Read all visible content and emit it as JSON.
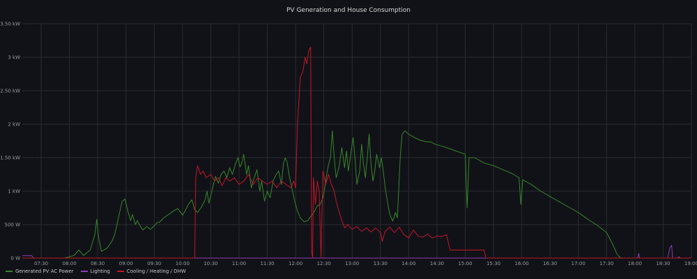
{
  "chart_data": {
    "type": "line",
    "title": "PV Generation and House Consumption",
    "xlabel": "",
    "ylabel": "",
    "x_ticks": [
      "07:30",
      "08:00",
      "08:30",
      "09:00",
      "09:30",
      "10:00",
      "10:30",
      "11:00",
      "11:30",
      "12:00",
      "12:30",
      "13:00",
      "13:30",
      "14:00",
      "14:30",
      "15:00",
      "15:30",
      "16:00",
      "16:30",
      "17:00",
      "17:30",
      "18:00",
      "18:30",
      "19:00"
    ],
    "y_ticks": [
      "0 W",
      "500 W",
      "1 kW",
      "1.50 kW",
      "2 kW",
      "2.50 kW",
      "3 kW",
      "3.50 kW"
    ],
    "ylim": [
      0,
      3500
    ],
    "xlim": [
      "07:10",
      "19:00"
    ],
    "grid": true,
    "legend_position": "bottom-left",
    "series": [
      {
        "name": "Generated PV AC Power",
        "color": "#37872d",
        "points": [
          [
            "07:10",
            0
          ],
          [
            "07:55",
            0
          ],
          [
            "08:05",
            40
          ],
          [
            "08:10",
            120
          ],
          [
            "08:15",
            40
          ],
          [
            "08:22",
            120
          ],
          [
            "08:27",
            350
          ],
          [
            "08:29",
            580
          ],
          [
            "08:31",
            300
          ],
          [
            "08:34",
            100
          ],
          [
            "08:40",
            150
          ],
          [
            "08:45",
            250
          ],
          [
            "08:48",
            350
          ],
          [
            "08:52",
            600
          ],
          [
            "08:56",
            850
          ],
          [
            "08:59",
            880
          ],
          [
            "09:02",
            700
          ],
          [
            "09:05",
            560
          ],
          [
            "09:07",
            650
          ],
          [
            "09:10",
            500
          ],
          [
            "09:12",
            560
          ],
          [
            "09:15",
            480
          ],
          [
            "09:18",
            420
          ],
          [
            "09:22",
            470
          ],
          [
            "09:26",
            430
          ],
          [
            "09:30",
            480
          ],
          [
            "09:33",
            530
          ],
          [
            "09:36",
            540
          ],
          [
            "09:40",
            600
          ],
          [
            "09:45",
            650
          ],
          [
            "09:50",
            700
          ],
          [
            "09:55",
            740
          ],
          [
            "10:00",
            640
          ],
          [
            "10:03",
            710
          ],
          [
            "10:06",
            800
          ],
          [
            "10:10",
            870
          ],
          [
            "10:13",
            720
          ],
          [
            "10:16",
            680
          ],
          [
            "10:20",
            760
          ],
          [
            "10:24",
            870
          ],
          [
            "10:26",
            1000
          ],
          [
            "10:28",
            820
          ],
          [
            "10:30",
            930
          ],
          [
            "10:32",
            1050
          ],
          [
            "10:35",
            1220
          ],
          [
            "10:38",
            1120
          ],
          [
            "10:41",
            1250
          ],
          [
            "10:44",
            1300
          ],
          [
            "10:47",
            1200
          ],
          [
            "10:50",
            1350
          ],
          [
            "10:53",
            1250
          ],
          [
            "10:56",
            1400
          ],
          [
            "10:59",
            1500
          ],
          [
            "11:01",
            1360
          ],
          [
            "11:03",
            1420
          ],
          [
            "11:05",
            1550
          ],
          [
            "11:08",
            1250
          ],
          [
            "11:10",
            1380
          ],
          [
            "11:13",
            1050
          ],
          [
            "11:16",
            1200
          ],
          [
            "11:19",
            1320
          ],
          [
            "11:22",
            1000
          ],
          [
            "11:24",
            1150
          ],
          [
            "11:27",
            850
          ],
          [
            "11:30",
            1000
          ],
          [
            "11:33",
            900
          ],
          [
            "11:36",
            1150
          ],
          [
            "11:39",
            1240
          ],
          [
            "11:42",
            1300
          ],
          [
            "11:45",
            1100
          ],
          [
            "11:47",
            1400
          ],
          [
            "11:49",
            1500
          ],
          [
            "11:51",
            1430
          ],
          [
            "11:53",
            1250
          ],
          [
            "11:56",
            1050
          ],
          [
            "11:59",
            850
          ],
          [
            "12:02",
            700
          ],
          [
            "12:05",
            600
          ],
          [
            "12:09",
            540
          ],
          [
            "12:13",
            560
          ],
          [
            "12:17",
            640
          ],
          [
            "12:20",
            700
          ],
          [
            "12:23",
            780
          ],
          [
            "12:26",
            800
          ],
          [
            "12:29",
            900
          ],
          [
            "12:31",
            1050
          ],
          [
            "12:33",
            1250
          ],
          [
            "12:35",
            1400
          ],
          [
            "12:37",
            1500
          ],
          [
            "12:39",
            1900
          ],
          [
            "12:41",
            1500
          ],
          [
            "12:43",
            1200
          ],
          [
            "12:46",
            1350
          ],
          [
            "12:49",
            1650
          ],
          [
            "12:52",
            1350
          ],
          [
            "12:54",
            1600
          ],
          [
            "12:56",
            1300
          ],
          [
            "12:58",
            1500
          ],
          [
            "13:01",
            1800
          ],
          [
            "13:03",
            1500
          ],
          [
            "13:05",
            1100
          ],
          [
            "13:08",
            1300
          ],
          [
            "13:10",
            1700
          ],
          [
            "13:12",
            1400
          ],
          [
            "13:14",
            1200
          ],
          [
            "13:16",
            1500
          ],
          [
            "13:18",
            1850
          ],
          [
            "13:20",
            1400
          ],
          [
            "13:22",
            1150
          ],
          [
            "13:24",
            1300
          ],
          [
            "13:26",
            1550
          ],
          [
            "13:29",
            1350
          ],
          [
            "13:31",
            1500
          ],
          [
            "13:33",
            1300
          ],
          [
            "13:35",
            1050
          ],
          [
            "13:38",
            800
          ],
          [
            "13:40",
            650
          ],
          [
            "13:43",
            550
          ],
          [
            "13:46",
            680
          ],
          [
            "13:48",
            600
          ],
          [
            "13:51",
            1500
          ],
          [
            "13:53",
            1850
          ],
          [
            "13:56",
            1900
          ],
          [
            "14:00",
            1850
          ],
          [
            "14:06",
            1800
          ],
          [
            "14:12",
            1760
          ],
          [
            "14:18",
            1740
          ],
          [
            "14:24",
            1730
          ],
          [
            "14:28",
            1700
          ],
          [
            "14:33",
            1680
          ],
          [
            "14:40",
            1650
          ],
          [
            "14:50",
            1600
          ],
          [
            "15:00",
            1550
          ],
          [
            "15:02",
            750
          ],
          [
            "15:04",
            1500
          ],
          [
            "15:10",
            1500
          ],
          [
            "15:20",
            1420
          ],
          [
            "15:30",
            1380
          ],
          [
            "15:40",
            1320
          ],
          [
            "15:50",
            1260
          ],
          [
            "15:57",
            1200
          ],
          [
            "15:59",
            800
          ],
          [
            "16:01",
            1170
          ],
          [
            "16:10",
            1100
          ],
          [
            "16:20",
            1000
          ],
          [
            "16:30",
            920
          ],
          [
            "16:40",
            840
          ],
          [
            "16:50",
            760
          ],
          [
            "17:00",
            680
          ],
          [
            "17:10",
            580
          ],
          [
            "17:20",
            490
          ],
          [
            "17:30",
            380
          ],
          [
            "17:36",
            220
          ],
          [
            "17:41",
            60
          ],
          [
            "17:45",
            0
          ],
          [
            "19:00",
            0
          ]
        ]
      },
      {
        "name": "Lighting",
        "color": "#8f3bb8",
        "points": [
          [
            "07:10",
            35
          ],
          [
            "07:20",
            35
          ],
          [
            "07:22",
            0
          ],
          [
            "18:03",
            0
          ],
          [
            "18:04",
            70
          ],
          [
            "18:05",
            0
          ],
          [
            "18:35",
            0
          ],
          [
            "18:37",
            150
          ],
          [
            "18:39",
            190
          ],
          [
            "18:40",
            0
          ],
          [
            "18:45",
            0
          ],
          [
            "18:47",
            20
          ],
          [
            "18:48",
            0
          ],
          [
            "19:00",
            0
          ]
        ]
      },
      {
        "name": "Cooling / Heating / DHW",
        "color": "#c4162a",
        "points": [
          [
            "07:10",
            0
          ],
          [
            "10:10",
            0
          ],
          [
            "10:13",
            0
          ],
          [
            "10:14",
            1200
          ],
          [
            "10:16",
            1380
          ],
          [
            "10:19",
            1250
          ],
          [
            "10:22",
            1300
          ],
          [
            "10:25",
            1200
          ],
          [
            "10:30",
            1250
          ],
          [
            "10:34",
            1150
          ],
          [
            "10:38",
            1200
          ],
          [
            "10:42",
            1080
          ],
          [
            "10:46",
            1200
          ],
          [
            "10:50",
            1150
          ],
          [
            "10:55",
            1200
          ],
          [
            "11:00",
            1100
          ],
          [
            "11:05",
            1150
          ],
          [
            "11:10",
            1250
          ],
          [
            "11:15",
            1100
          ],
          [
            "11:20",
            1200
          ],
          [
            "11:25",
            1150
          ],
          [
            "11:30",
            1100
          ],
          [
            "11:35",
            1150
          ],
          [
            "11:40",
            1050
          ],
          [
            "11:45",
            1150
          ],
          [
            "11:50",
            1100
          ],
          [
            "11:55",
            1050
          ],
          [
            "11:58",
            1150
          ],
          [
            "12:00",
            1050
          ],
          [
            "12:02",
            2000
          ],
          [
            "12:05",
            2700
          ],
          [
            "12:08",
            2800
          ],
          [
            "12:10",
            3000
          ],
          [
            "12:12",
            2900
          ],
          [
            "12:14",
            3100
          ],
          [
            "12:16",
            3150
          ],
          [
            "12:17",
            100
          ],
          [
            "12:18",
            0
          ],
          [
            "12:19",
            1200
          ],
          [
            "12:21",
            800
          ],
          [
            "12:23",
            1150
          ],
          [
            "12:25",
            1000
          ],
          [
            "12:27",
            0
          ],
          [
            "12:29",
            1300
          ],
          [
            "12:32",
            1100
          ],
          [
            "12:35",
            1250
          ],
          [
            "12:38",
            1100
          ],
          [
            "12:41",
            1000
          ],
          [
            "12:43",
            850
          ],
          [
            "12:46",
            700
          ],
          [
            "12:49",
            560
          ],
          [
            "12:52",
            450
          ],
          [
            "12:55",
            500
          ],
          [
            "13:00",
            430
          ],
          [
            "13:05",
            470
          ],
          [
            "13:10",
            400
          ],
          [
            "13:15",
            450
          ],
          [
            "13:20",
            390
          ],
          [
            "13:25",
            450
          ],
          [
            "13:30",
            380
          ],
          [
            "13:32",
            250
          ],
          [
            "13:35",
            400
          ],
          [
            "13:40",
            460
          ],
          [
            "13:45",
            380
          ],
          [
            "13:50",
            460
          ],
          [
            "13:55",
            350
          ],
          [
            "14:00",
            300
          ],
          [
            "14:05",
            420
          ],
          [
            "14:10",
            330
          ],
          [
            "14:15",
            310
          ],
          [
            "14:20",
            360
          ],
          [
            "14:25",
            300
          ],
          [
            "14:30",
            330
          ],
          [
            "14:35",
            320
          ],
          [
            "14:40",
            350
          ],
          [
            "14:44",
            120
          ],
          [
            "15:10",
            120
          ],
          [
            "15:20",
            120
          ],
          [
            "15:22",
            0
          ],
          [
            "19:00",
            0
          ]
        ]
      }
    ]
  }
}
